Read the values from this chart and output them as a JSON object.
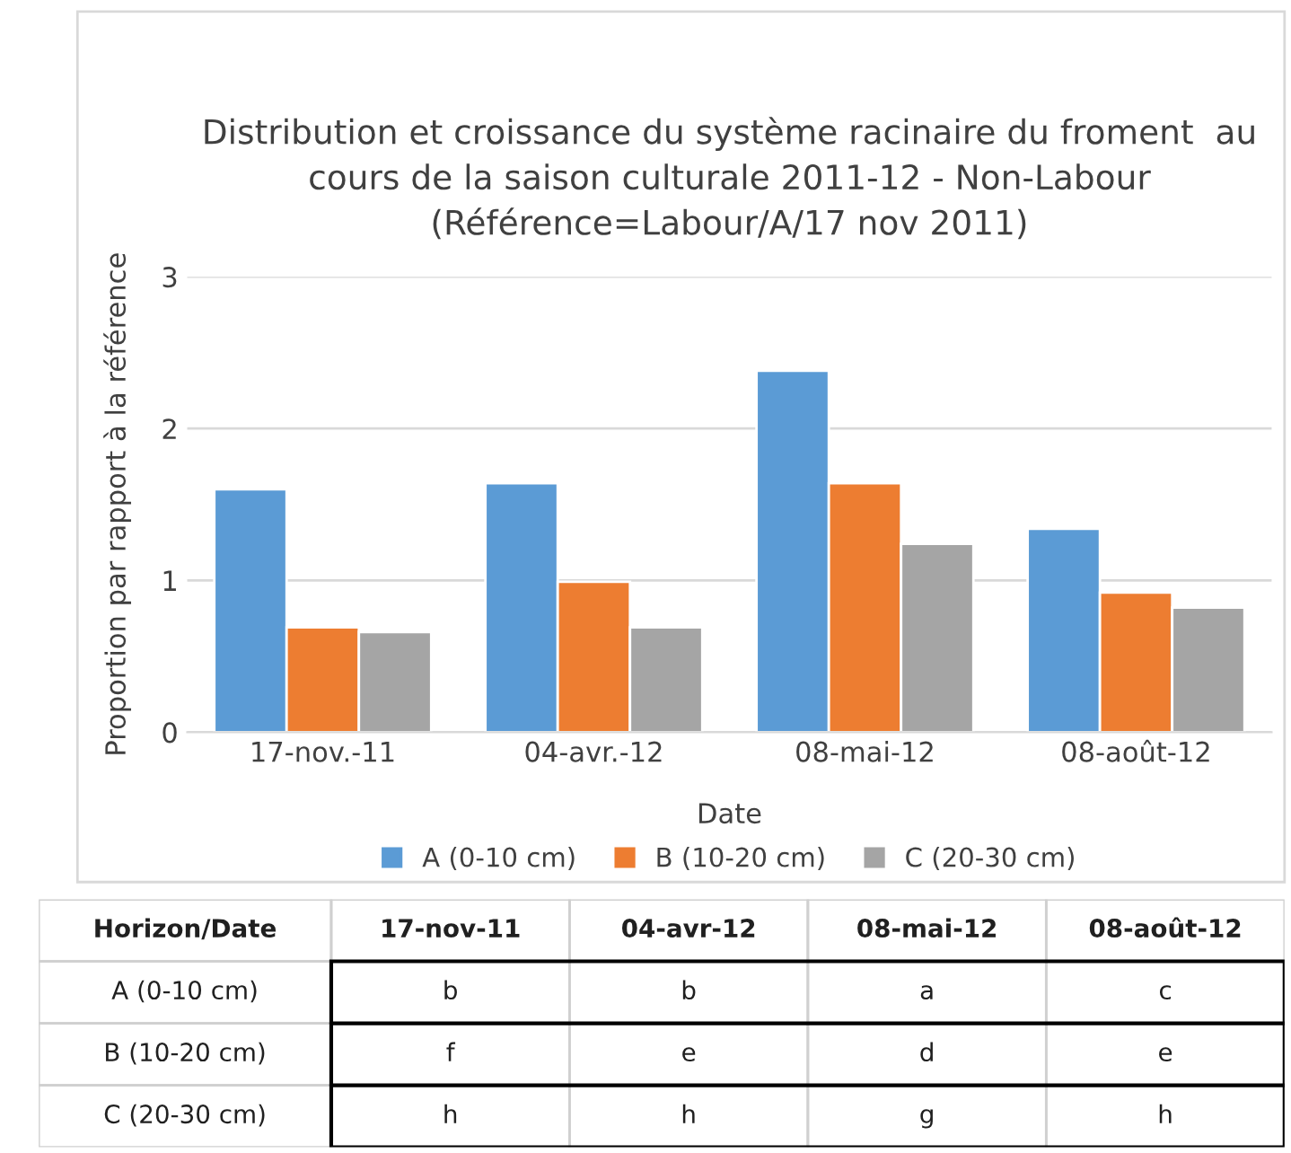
{
  "chart_data": [
    {
      "type": "bar",
      "title": "Distribution et croissance du système racinaire du froment  au cours de la saison culturale 2011-12 - Non-Labour (Référence=Labour/A/17 nov 2011)",
      "xlabel": "Date",
      "ylabel": "Proportion par rapport à la référence",
      "categories": [
        "17-nov.-11",
        "04-avr.-12",
        "08-mai-12",
        "08-août-12"
      ],
      "series": [
        {
          "name": "A (0-10 cm)",
          "color": "#5b9bd5",
          "values": [
            1.6,
            1.64,
            2.38,
            1.34
          ]
        },
        {
          "name": "B (10-20 cm)",
          "color": "#ed7d31",
          "values": [
            0.69,
            0.99,
            1.64,
            0.92
          ]
        },
        {
          "name": "C (20-30 cm)",
          "color": "#a5a5a5",
          "values": [
            0.66,
            0.69,
            1.24,
            0.82
          ]
        }
      ],
      "ylim": [
        0,
        3
      ],
      "yticks": [
        0,
        1,
        2,
        3
      ],
      "grid": "y",
      "legend": "bottom"
    },
    {
      "type": "other",
      "title": "Horizon/Date",
      "categories": [
        "17-nov-11",
        "04-avr-12",
        "08-mai-12",
        "08-août-12"
      ],
      "y_categories": [
        "A (0-10 cm)",
        "B (10-20 cm)",
        "C (20-30 cm)"
      ],
      "cell_labels": [
        [
          "b",
          "b",
          "a",
          "c"
        ],
        [
          "f",
          "e",
          "d",
          "e"
        ],
        [
          "h",
          "h",
          "g",
          "h"
        ]
      ]
    }
  ]
}
